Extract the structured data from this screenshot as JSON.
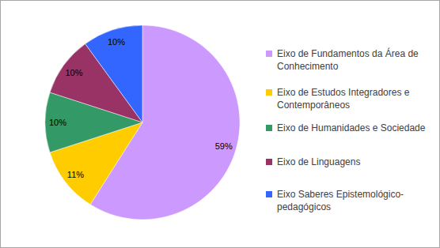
{
  "chart_data": {
    "type": "pie",
    "categories": [
      "Eixo de Fundamentos da Área de Conhecimento",
      "Eixo de Estudos Integradores e Contemporâneos",
      "Eixo de Humanidades e Sociedade",
      "Eixo de Linguagens",
      "Eixo Saberes Epistemológico-pedagógicos"
    ],
    "values": [
      59,
      11,
      10,
      10,
      10
    ],
    "value_labels": [
      "59%",
      "11%",
      "10%",
      "10%",
      "10%"
    ],
    "colors": [
      "#cc99ff",
      "#ffcc00",
      "#339966",
      "#993366",
      "#3366ff"
    ],
    "data_labels": true,
    "legend": "right"
  }
}
